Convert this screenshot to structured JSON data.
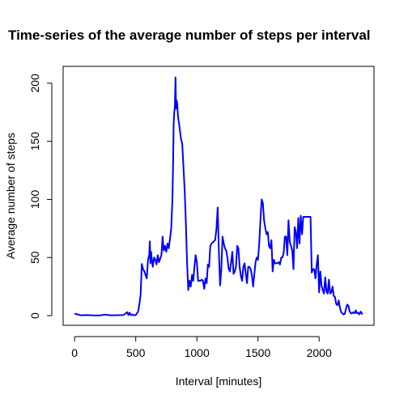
{
  "chart_data": {
    "type": "line",
    "title": "Time-series of the average number of steps per interval",
    "xlabel": "Interval [minutes]",
    "ylabel": "Average number of steps",
    "xlim": [
      -94,
      2449
    ],
    "ylim": [
      -8.3,
      214.5
    ],
    "xticks": [
      0,
      500,
      1000,
      1500,
      2000
    ],
    "yticks": [
      0,
      50,
      100,
      150,
      200
    ],
    "grid": false,
    "line_color": "#0000ff",
    "series": [
      {
        "x": [
          0,
          50,
          100,
          150,
          200,
          250,
          300,
          350,
          400,
          430,
          440,
          450,
          460,
          470,
          480,
          500,
          510,
          520,
          530,
          540,
          545,
          550,
          555,
          560,
          570,
          580,
          590,
          600,
          610,
          615,
          620,
          625,
          630,
          640,
          650,
          660,
          670,
          680,
          690,
          700,
          710,
          720,
          725,
          730,
          740,
          750,
          760,
          770,
          780,
          790,
          800,
          805,
          810,
          815,
          820,
          825,
          830,
          835,
          840,
          845,
          850,
          855,
          860,
          870,
          880,
          890,
          900,
          910,
          920,
          930,
          940,
          950,
          960,
          970,
          980,
          990,
          1000,
          1010,
          1020,
          1030,
          1040,
          1050,
          1060,
          1070,
          1080,
          1090,
          1100,
          1110,
          1120,
          1130,
          1140,
          1150,
          1160,
          1170,
          1180,
          1190,
          1200,
          1210,
          1220,
          1230,
          1240,
          1250,
          1260,
          1270,
          1280,
          1290,
          1300,
          1310,
          1320,
          1330,
          1340,
          1350,
          1360,
          1370,
          1380,
          1390,
          1400,
          1410,
          1420,
          1430,
          1440,
          1450,
          1460,
          1470,
          1480,
          1490,
          1500,
          1510,
          1520,
          1530,
          1540,
          1550,
          1560,
          1570,
          1580,
          1590,
          1600,
          1610,
          1620,
          1630,
          1640,
          1650,
          1660,
          1670,
          1680,
          1690,
          1700,
          1710,
          1720,
          1730,
          1740,
          1750,
          1760,
          1770,
          1780,
          1790,
          1800,
          1810,
          1820,
          1830,
          1840,
          1850,
          1860,
          1870,
          1880,
          1890,
          1900,
          1910,
          1920,
          1930,
          1940,
          1950,
          1960,
          1970,
          1980,
          1990,
          2000,
          2010,
          2020,
          2030,
          2040,
          2050,
          2060,
          2070,
          2080,
          2090,
          2100,
          2110,
          2120,
          2130,
          2140,
          2150,
          2160,
          2170,
          2180,
          2190,
          2200,
          2210,
          2220,
          2230,
          2240,
          2250,
          2260,
          2270,
          2280,
          2290,
          2300,
          2310,
          2320,
          2330,
          2340,
          2355
        ],
        "values": [
          1.7,
          0.3,
          0.5,
          0.2,
          0.1,
          0.8,
          0.2,
          0.4,
          0.5,
          3.0,
          0.5,
          2.5,
          0.3,
          1.0,
          0.3,
          0.5,
          2.0,
          3.5,
          10.0,
          18.0,
          32.0,
          44.5,
          42.0,
          40.0,
          38.0,
          35.0,
          32.0,
          48.0,
          52.0,
          64.0,
          45.0,
          55.0,
          50.0,
          42.0,
          50.0,
          48.0,
          44.0,
          52.0,
          46.0,
          49.0,
          52.0,
          68.0,
          60.0,
          56.0,
          60.0,
          55.0,
          62.0,
          58.0,
          66.0,
          75.0,
          100.0,
          130.0,
          165.0,
          175.0,
          180.0,
          205.0,
          178.0,
          185.0,
          182.0,
          172.0,
          168.0,
          165.0,
          160.0,
          152.0,
          148.0,
          128.0,
          108.0,
          80.0,
          45.0,
          22.0,
          30.0,
          25.0,
          35.0,
          30.0,
          42.0,
          52.0,
          46.0,
          30.0,
          30.0,
          30.0,
          31.0,
          30.0,
          23.0,
          32.0,
          28.0,
          44.0,
          42.0,
          60.0,
          62.0,
          63.0,
          64.0,
          65.0,
          75.0,
          93.0,
          55.0,
          26.0,
          40.0,
          68.0,
          62.0,
          58.0,
          56.0,
          50.0,
          40.0,
          38.0,
          46.0,
          55.0,
          36.0,
          38.0,
          42.0,
          60.0,
          58.0,
          42.0,
          34.0,
          30.0,
          42.0,
          45.0,
          36.0,
          28.0,
          42.0,
          42.0,
          40.0,
          35.0,
          25.0,
          36.0,
          46.0,
          50.0,
          48.0,
          62.0,
          82.0,
          100.0,
          97.0,
          82.0,
          75.0,
          70.0,
          72.0,
          60.0,
          58.0,
          65.0,
          38.0,
          48.0,
          45.0,
          45.0,
          45.0,
          46.0,
          44.0,
          50.0,
          50.0,
          54.0,
          68.0,
          68.0,
          52.0,
          82.0,
          63.0,
          60.0,
          56.0,
          40.0,
          76.0,
          72.0,
          58.0,
          84.0,
          62.0,
          86.0,
          70.0,
          85.0,
          85.0,
          85.0,
          85.0,
          85.0,
          85.0,
          85.0,
          37.0,
          40.0,
          40.0,
          32.0,
          44.0,
          52.0,
          20.0,
          38.0,
          26.0,
          22.0,
          19.0,
          33.0,
          21.0,
          19.0,
          31.0,
          19.0,
          20.0,
          25.0,
          17.0,
          16.0,
          10.0,
          9.0,
          13.0,
          7.0,
          3.0,
          2.0,
          1.0,
          1.5,
          6.0,
          9.5,
          8.5,
          3.5,
          2.0,
          2.0,
          3.0,
          2.0,
          4.5,
          2.0,
          2.5,
          1.0,
          3.5,
          1.0
        ]
      }
    ]
  }
}
